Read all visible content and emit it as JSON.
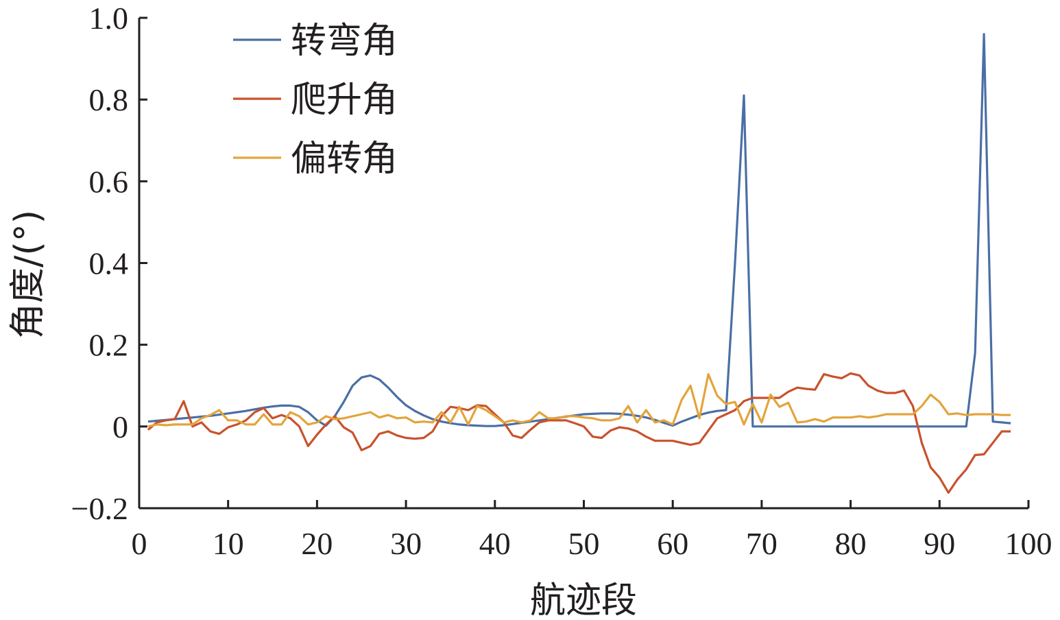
{
  "chart_data": {
    "type": "line",
    "title": "",
    "xlabel": "航迹段",
    "ylabel": "角度/(°)",
    "xlim": [
      0,
      100
    ],
    "ylim": [
      -0.2,
      1.0
    ],
    "xticks": [
      "0",
      "10",
      "20",
      "30",
      "40",
      "50",
      "60",
      "70",
      "80",
      "90",
      "100"
    ],
    "yticks": [
      "−0.2",
      "0",
      "0.2",
      "0.4",
      "0.6",
      "0.8",
      "1.0"
    ],
    "ytick_values": [
      -0.2,
      0,
      0.2,
      0.4,
      0.6,
      0.8,
      1.0
    ],
    "xtick_values": [
      0,
      10,
      20,
      30,
      40,
      50,
      60,
      70,
      80,
      90,
      100
    ],
    "grid": false,
    "legend_position": "top-left",
    "series": [
      {
        "name": "转弯角",
        "color": "#4a6fa5",
        "x": [
          1,
          2,
          3,
          4,
          5,
          6,
          7,
          8,
          9,
          10,
          11,
          12,
          13,
          14,
          15,
          16,
          17,
          18,
          19,
          20,
          21,
          22,
          23,
          24,
          25,
          26,
          27,
          28,
          29,
          30,
          31,
          32,
          33,
          34,
          35,
          36,
          37,
          38,
          39,
          40,
          41,
          42,
          43,
          44,
          45,
          46,
          47,
          48,
          49,
          50,
          51,
          52,
          53,
          54,
          55,
          56,
          57,
          58,
          59,
          60,
          61,
          62,
          63,
          64,
          65,
          66,
          67,
          68,
          69,
          70,
          71,
          72,
          73,
          74,
          75,
          76,
          77,
          78,
          79,
          80,
          81,
          82,
          83,
          84,
          85,
          86,
          87,
          88,
          89,
          90,
          91,
          92,
          93,
          94,
          95,
          96,
          97,
          98
        ],
        "values": [
          0.012,
          0.014,
          0.016,
          0.018,
          0.02,
          0.022,
          0.024,
          0.026,
          0.029,
          0.032,
          0.035,
          0.038,
          0.042,
          0.046,
          0.049,
          0.051,
          0.051,
          0.048,
          0.035,
          0.015,
          0.002,
          0.025,
          0.06,
          0.1,
          0.12,
          0.125,
          0.115,
          0.095,
          0.072,
          0.052,
          0.038,
          0.027,
          0.018,
          0.012,
          0.008,
          0.005,
          0.003,
          0.002,
          0.001,
          0.001,
          0.003,
          0.006,
          0.009,
          0.012,
          0.015,
          0.018,
          0.021,
          0.024,
          0.027,
          0.03,
          0.031,
          0.032,
          0.032,
          0.031,
          0.029,
          0.026,
          0.022,
          0.016,
          0.009,
          0.002,
          0.012,
          0.02,
          0.028,
          0.034,
          0.038,
          0.04,
          0.4,
          0.81,
          0.0,
          0.0,
          0.0,
          0.0,
          0.0,
          0.0,
          0.0,
          0.0,
          0.0,
          0.0,
          0.0,
          0.0,
          0.0,
          0.0,
          0.0,
          0.0,
          0.0,
          0.0,
          0.0,
          0.0,
          0.0,
          0.0,
          0.0,
          0.0,
          0.0,
          0.18,
          0.96,
          0.012,
          0.01,
          0.008
        ]
      },
      {
        "name": "爬升角",
        "color": "#c8522d",
        "x": [
          1,
          2,
          3,
          4,
          5,
          6,
          7,
          8,
          9,
          10,
          11,
          12,
          13,
          14,
          15,
          16,
          17,
          18,
          19,
          20,
          21,
          22,
          23,
          24,
          25,
          26,
          27,
          28,
          29,
          30,
          31,
          32,
          33,
          34,
          35,
          36,
          37,
          38,
          39,
          40,
          41,
          42,
          43,
          44,
          45,
          46,
          47,
          48,
          49,
          50,
          51,
          52,
          53,
          54,
          55,
          56,
          57,
          58,
          59,
          60,
          61,
          62,
          63,
          64,
          65,
          66,
          67,
          68,
          69,
          70,
          71,
          72,
          73,
          74,
          75,
          76,
          77,
          78,
          79,
          80,
          81,
          82,
          83,
          84,
          85,
          86,
          87,
          88,
          89,
          90,
          91,
          92,
          93,
          94,
          95,
          96,
          97,
          98
        ],
        "values": [
          -0.008,
          0.01,
          0.015,
          0.018,
          0.062,
          0.0,
          0.01,
          -0.012,
          -0.018,
          -0.002,
          0.005,
          0.015,
          0.035,
          0.045,
          0.02,
          0.028,
          0.02,
          0.0,
          -0.048,
          -0.02,
          0.005,
          0.025,
          -0.002,
          -0.015,
          -0.058,
          -0.048,
          -0.018,
          -0.012,
          -0.022,
          -0.028,
          -0.03,
          -0.028,
          -0.012,
          0.025,
          0.048,
          0.045,
          0.04,
          0.052,
          0.05,
          0.03,
          0.01,
          -0.022,
          -0.028,
          -0.008,
          0.01,
          0.015,
          0.015,
          0.015,
          0.008,
          0.0,
          -0.025,
          -0.028,
          -0.01,
          -0.002,
          -0.005,
          -0.012,
          -0.025,
          -0.035,
          -0.035,
          -0.035,
          -0.04,
          -0.045,
          -0.04,
          -0.01,
          0.02,
          0.03,
          0.04,
          0.062,
          0.07,
          0.07,
          0.07,
          0.07,
          0.085,
          0.095,
          0.092,
          0.09,
          0.128,
          0.122,
          0.118,
          0.13,
          0.125,
          0.1,
          0.088,
          0.082,
          0.082,
          0.088,
          0.05,
          -0.04,
          -0.1,
          -0.125,
          -0.162,
          -0.13,
          -0.105,
          -0.07,
          -0.068,
          -0.04,
          -0.012,
          -0.012
        ]
      },
      {
        "name": "偏转角",
        "color": "#e3a43b",
        "x": [
          1,
          2,
          3,
          4,
          5,
          6,
          7,
          8,
          9,
          10,
          11,
          12,
          13,
          14,
          15,
          16,
          17,
          18,
          19,
          20,
          21,
          22,
          23,
          24,
          25,
          26,
          27,
          28,
          29,
          30,
          31,
          32,
          33,
          34,
          35,
          36,
          37,
          38,
          39,
          40,
          41,
          42,
          43,
          44,
          45,
          46,
          47,
          48,
          49,
          50,
          51,
          52,
          53,
          54,
          55,
          56,
          57,
          58,
          59,
          60,
          61,
          62,
          63,
          64,
          65,
          66,
          67,
          68,
          69,
          70,
          71,
          72,
          73,
          74,
          75,
          76,
          77,
          78,
          79,
          80,
          81,
          82,
          83,
          84,
          85,
          86,
          87,
          88,
          89,
          90,
          91,
          92,
          93,
          94,
          95,
          96,
          97,
          98
        ],
        "values": [
          0.0,
          0.005,
          0.003,
          0.005,
          0.005,
          0.005,
          0.02,
          0.028,
          0.04,
          0.015,
          0.015,
          0.005,
          0.005,
          0.03,
          0.005,
          0.005,
          0.035,
          0.025,
          0.005,
          0.01,
          0.025,
          0.018,
          0.02,
          0.025,
          0.03,
          0.035,
          0.022,
          0.028,
          0.02,
          0.022,
          0.01,
          0.012,
          0.01,
          0.035,
          0.01,
          0.048,
          0.005,
          0.05,
          0.04,
          0.025,
          0.01,
          0.015,
          0.01,
          0.015,
          0.035,
          0.02,
          0.02,
          0.025,
          0.025,
          0.022,
          0.02,
          0.015,
          0.015,
          0.02,
          0.05,
          0.01,
          0.04,
          0.01,
          0.015,
          0.005,
          0.065,
          0.1,
          0.02,
          0.128,
          0.075,
          0.055,
          0.06,
          0.005,
          0.055,
          0.01,
          0.078,
          0.048,
          0.058,
          0.01,
          0.012,
          0.018,
          0.012,
          0.022,
          0.022,
          0.022,
          0.025,
          0.022,
          0.025,
          0.03,
          0.03,
          0.03,
          0.03,
          0.05,
          0.078,
          0.06,
          0.03,
          0.032,
          0.028,
          0.03,
          0.03,
          0.03,
          0.028,
          0.028
        ]
      }
    ]
  }
}
